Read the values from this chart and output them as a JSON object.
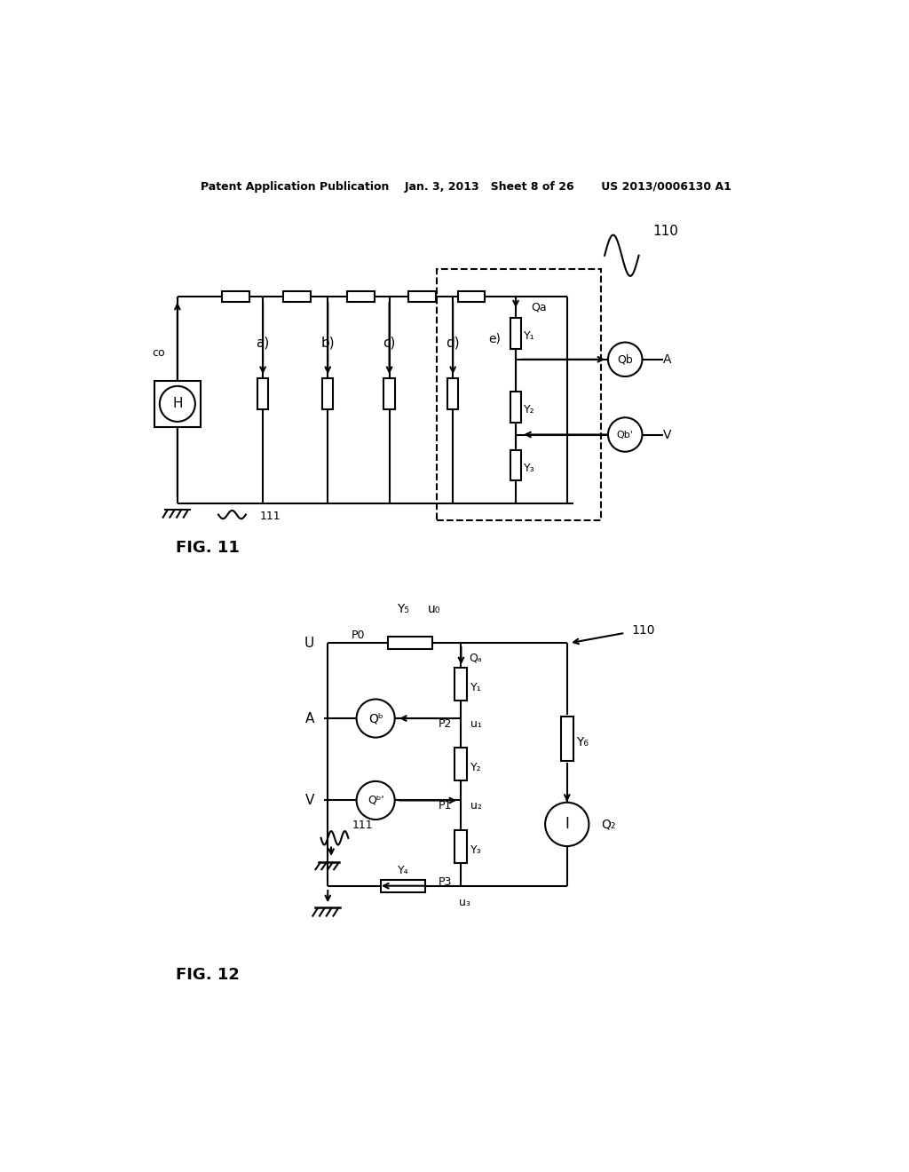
{
  "bg_color": "#ffffff",
  "header": "Patent Application Publication    Jan. 3, 2013   Sheet 8 of 26       US 2013/0006130 A1",
  "fig11_label": "FIG. 11",
  "fig12_label": "FIG. 12"
}
